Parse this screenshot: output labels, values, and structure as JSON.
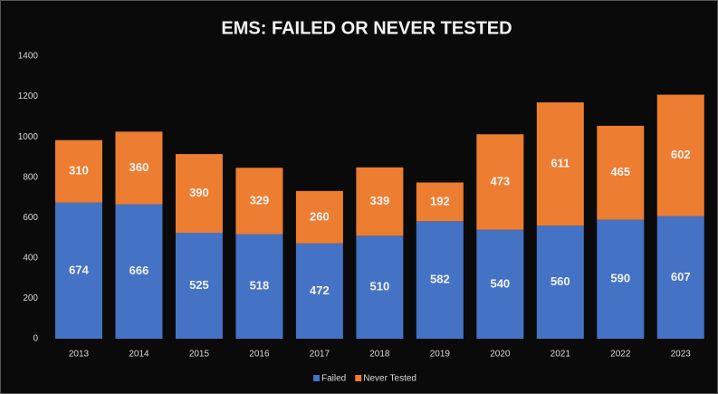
{
  "chart_data": {
    "type": "stacked_bar",
    "title": "EMS: FAILED OR NEVER TESTED",
    "categories": [
      "2013",
      "2014",
      "2015",
      "2016",
      "2017",
      "2018",
      "2019",
      "2020",
      "2021",
      "2022",
      "2023"
    ],
    "series": [
      {
        "name": "Failed",
        "color": "#4472c4",
        "values": [
          674,
          666,
          525,
          518,
          472,
          510,
          582,
          540,
          560,
          590,
          607
        ]
      },
      {
        "name": "Never Tested",
        "color": "#ed7d31",
        "values": [
          310,
          360,
          390,
          329,
          260,
          339,
          192,
          473,
          611,
          465,
          602
        ]
      }
    ],
    "ylim": [
      0,
      1400
    ],
    "yticks": [
      0,
      200,
      400,
      600,
      800,
      1000,
      1200,
      1400
    ],
    "grid": false,
    "legend": "bottom"
  }
}
